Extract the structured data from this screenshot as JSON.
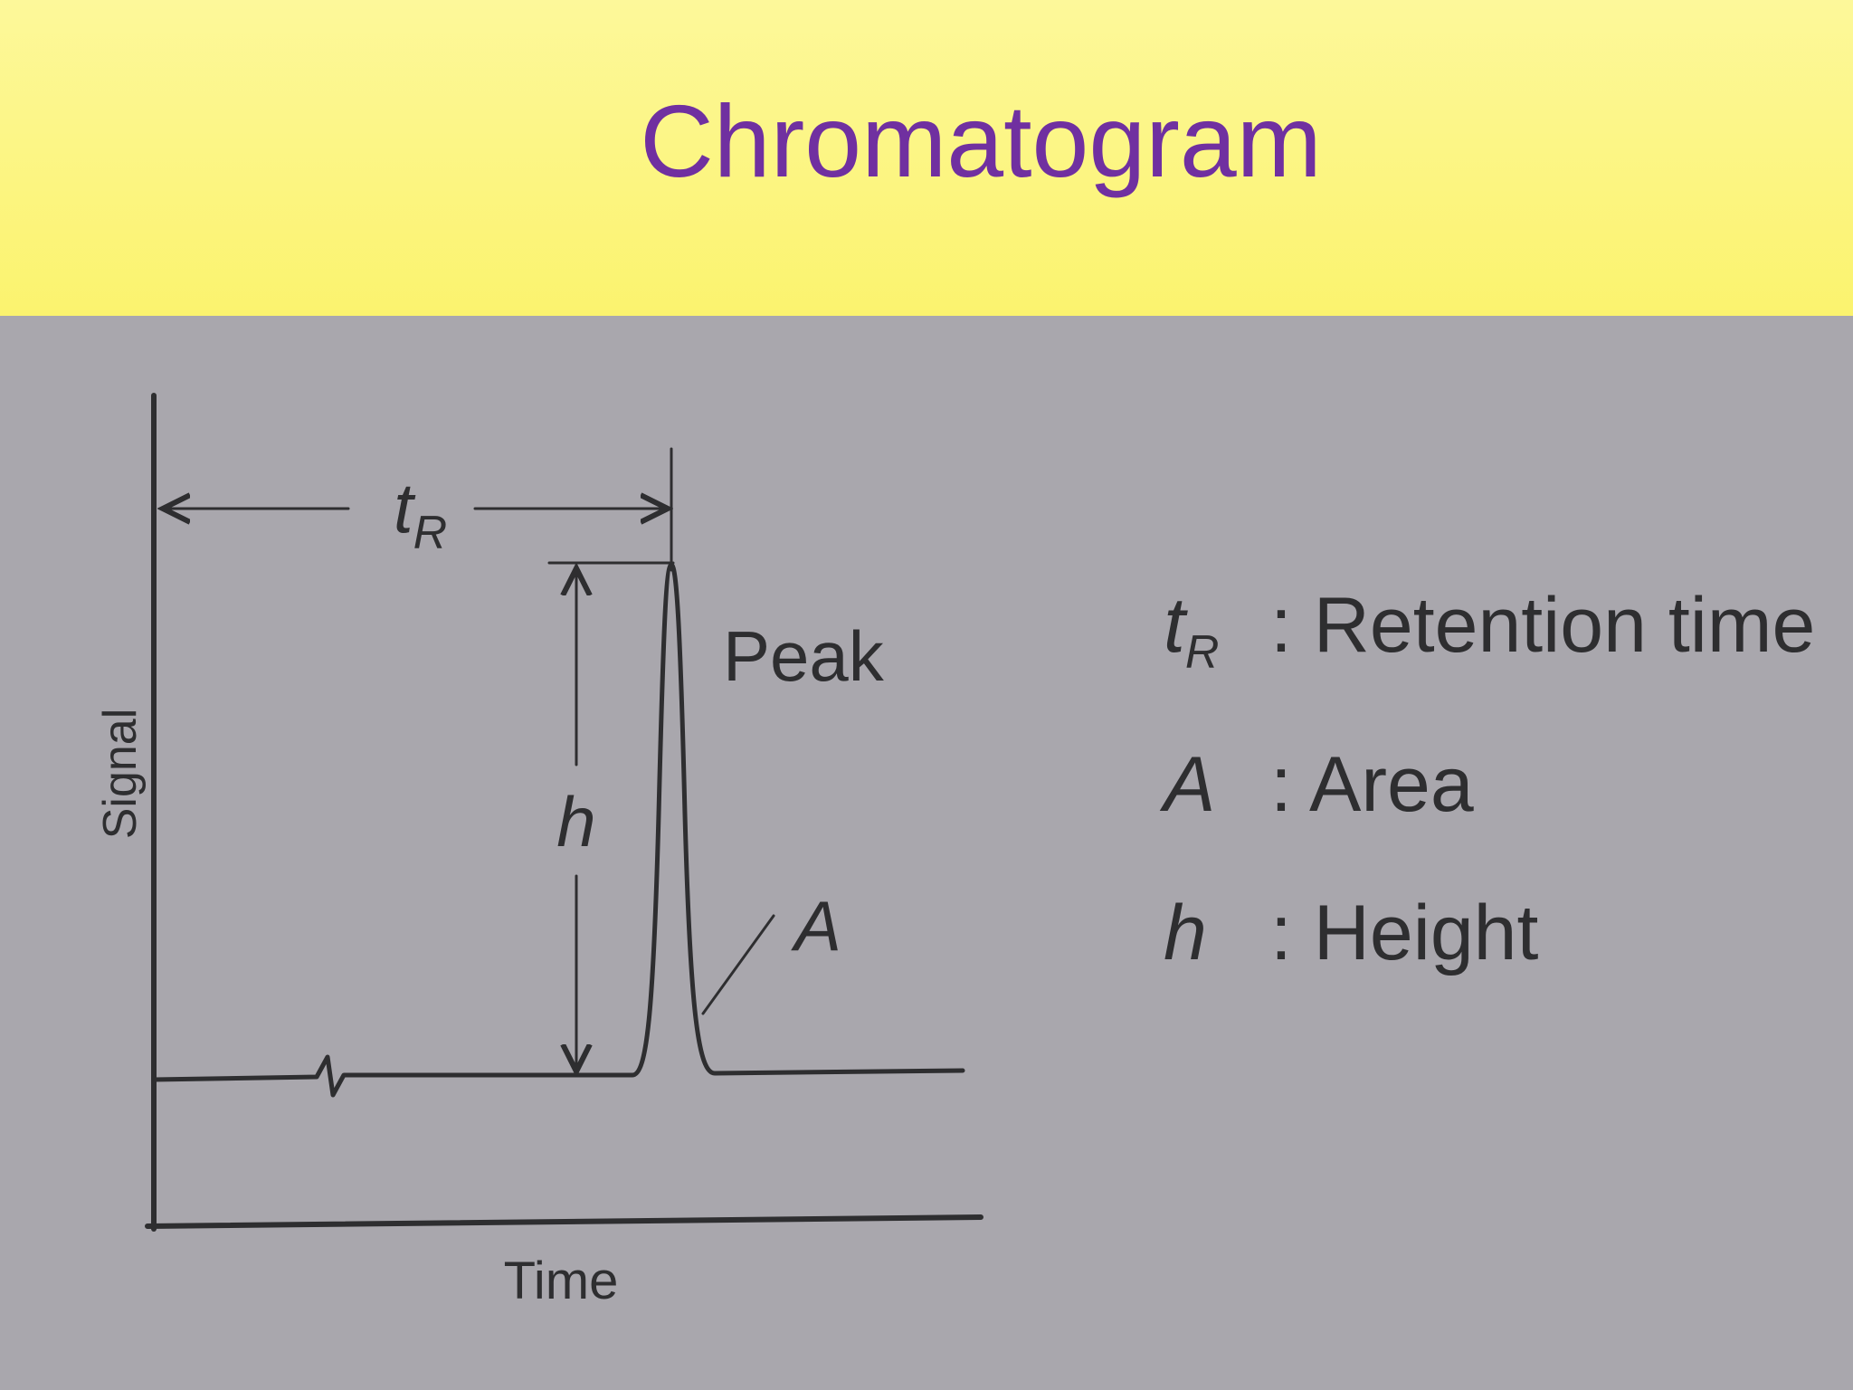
{
  "header": {
    "title": "Chromatogram"
  },
  "diagram": {
    "y_axis_label": "Signal",
    "x_axis_label": "Time",
    "retention_marker": {
      "symbol": "t",
      "subscript": "R"
    },
    "peak_label": "Peak",
    "height_label": "h",
    "area_label": "A"
  },
  "legend": [
    {
      "symbol": "t",
      "subscript": "R",
      "text": ": Retention time"
    },
    {
      "symbol": "A",
      "text": ": Area"
    },
    {
      "symbol": "h",
      "text": ": Height"
    }
  ]
}
